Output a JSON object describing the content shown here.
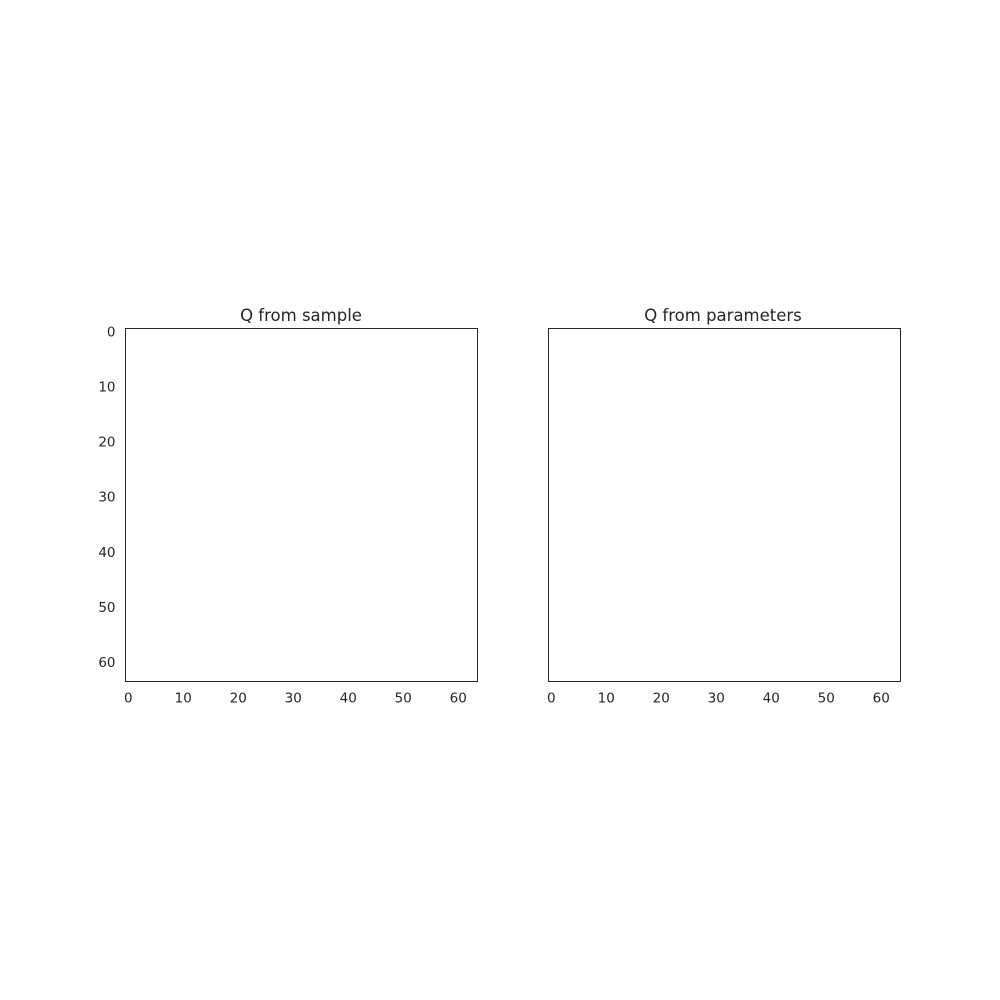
{
  "chart_data": [
    {
      "type": "heatmap",
      "title": "Q from sample",
      "xlabel": "",
      "ylabel": "",
      "xlim": [
        -0.5,
        63.5
      ],
      "ylim": [
        63.5,
        -0.5
      ],
      "x_ticks": [
        "0",
        "10",
        "20",
        "30",
        "40",
        "50",
        "60"
      ],
      "y_ticks": [
        "0",
        "10",
        "20",
        "30",
        "40",
        "50",
        "60"
      ],
      "grid": false,
      "values": []
    },
    {
      "type": "heatmap",
      "title": "Q from parameters",
      "xlabel": "",
      "ylabel": "",
      "xlim": [
        -0.5,
        63.5
      ],
      "ylim": [
        63.5,
        -0.5
      ],
      "x_ticks": [
        "0",
        "10",
        "20",
        "30",
        "40",
        "50",
        "60"
      ],
      "y_ticks": [],
      "grid": false,
      "values": []
    }
  ]
}
